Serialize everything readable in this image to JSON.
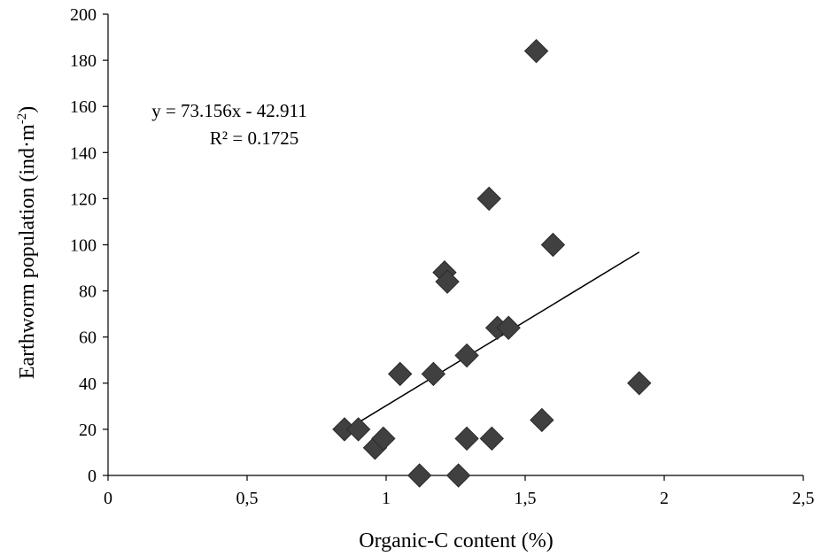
{
  "chart_data": {
    "type": "scatter",
    "title": "",
    "xlabel": "Organic-C content (%)",
    "ylabel_main": "Earthworm population (ind·m",
    "ylabel_sup": "-2",
    "ylabel_close": ")",
    "xlim": [
      0,
      2.5
    ],
    "ylim": [
      0,
      200
    ],
    "x_ticks": [
      0,
      0.5,
      1,
      1.5,
      2,
      2.5
    ],
    "x_tick_labels": [
      "0",
      "0,5",
      "1",
      "1,5",
      "2",
      "2,5"
    ],
    "y_ticks": [
      0,
      20,
      40,
      60,
      80,
      100,
      120,
      140,
      160,
      180,
      200
    ],
    "y_tick_labels": [
      "0",
      "20",
      "40",
      "60",
      "80",
      "100",
      "120",
      "140",
      "160",
      "180",
      "200"
    ],
    "grid": false,
    "marker": "diamond",
    "marker_color": "#404040",
    "points": [
      {
        "x": 0.85,
        "y": 20
      },
      {
        "x": 0.9,
        "y": 20
      },
      {
        "x": 0.96,
        "y": 12
      },
      {
        "x": 0.99,
        "y": 16
      },
      {
        "x": 1.05,
        "y": 44
      },
      {
        "x": 1.12,
        "y": 0
      },
      {
        "x": 1.17,
        "y": 44
      },
      {
        "x": 1.21,
        "y": 88
      },
      {
        "x": 1.22,
        "y": 84
      },
      {
        "x": 1.26,
        "y": 0
      },
      {
        "x": 1.29,
        "y": 52
      },
      {
        "x": 1.29,
        "y": 16
      },
      {
        "x": 1.37,
        "y": 120
      },
      {
        "x": 1.38,
        "y": 16
      },
      {
        "x": 1.4,
        "y": 64
      },
      {
        "x": 1.44,
        "y": 64
      },
      {
        "x": 1.54,
        "y": 184
      },
      {
        "x": 1.56,
        "y": 24
      },
      {
        "x": 1.6,
        "y": 100
      },
      {
        "x": 1.91,
        "y": 40
      }
    ],
    "trendline": {
      "slope": 73.156,
      "intercept": -42.911,
      "x_range": [
        0.85,
        1.91
      ],
      "equation_text": "y = 73.156x - 42.911",
      "r2_text": "R² = 0.1725"
    }
  }
}
